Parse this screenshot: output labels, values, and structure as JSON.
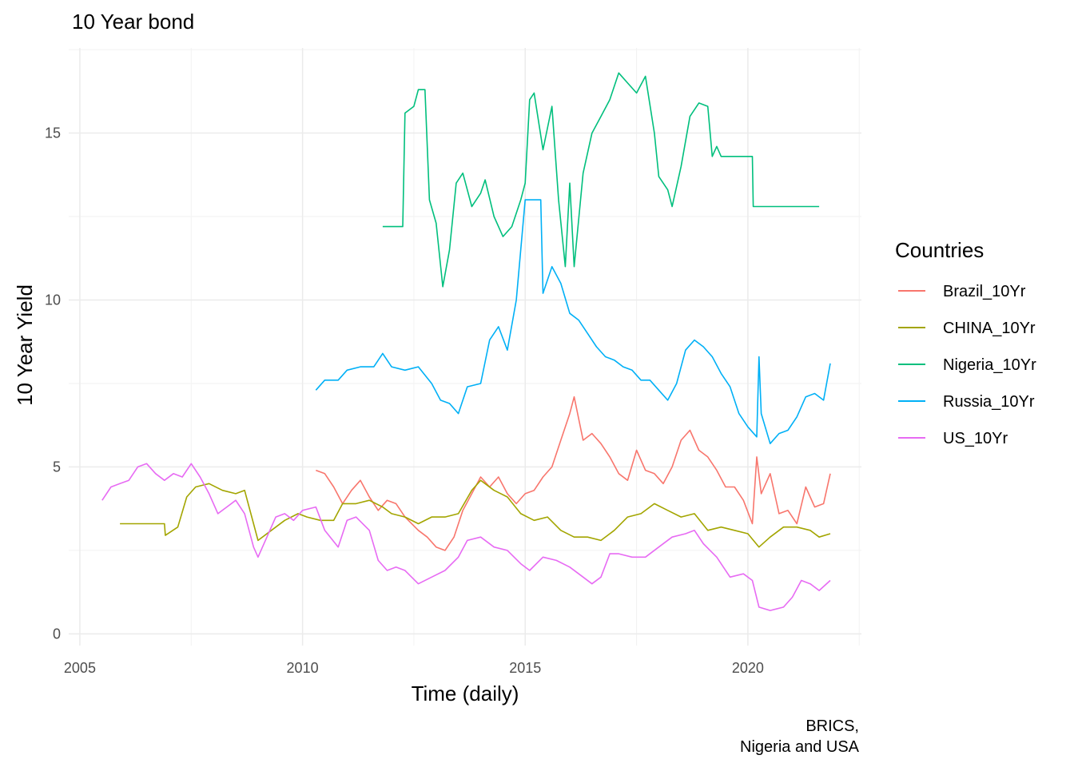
{
  "chart_data": {
    "type": "line",
    "title": "10 Year bond",
    "xlabel": "Time (daily)",
    "ylabel": "10 Year Yield",
    "caption": [
      "BRICS,",
      "Nigeria and USA"
    ],
    "x_ticks": [
      "2005",
      "2010",
      "2015",
      "2020"
    ],
    "y_ticks": [
      "0",
      "5",
      "10",
      "15"
    ],
    "xlim": [
      2004.75,
      2022.55
    ],
    "ylim": [
      -0.35,
      17.55
    ],
    "grid": true,
    "legend": {
      "title": "Countries",
      "position": "right"
    },
    "series": [
      {
        "name": "Brazil_10Yr",
        "color": "#F8766D",
        "points": [
          [
            2010.3,
            4.9
          ],
          [
            2010.5,
            4.8
          ],
          [
            2010.7,
            4.4
          ],
          [
            2010.9,
            3.9
          ],
          [
            2011.1,
            4.3
          ],
          [
            2011.3,
            4.6
          ],
          [
            2011.5,
            4.1
          ],
          [
            2011.7,
            3.7
          ],
          [
            2011.9,
            4.0
          ],
          [
            2012.1,
            3.9
          ],
          [
            2012.3,
            3.5
          ],
          [
            2012.6,
            3.1
          ],
          [
            2012.8,
            2.9
          ],
          [
            2013.0,
            2.6
          ],
          [
            2013.2,
            2.5
          ],
          [
            2013.4,
            2.9
          ],
          [
            2013.6,
            3.7
          ],
          [
            2013.8,
            4.2
          ],
          [
            2014.0,
            4.7
          ],
          [
            2014.2,
            4.4
          ],
          [
            2014.4,
            4.7
          ],
          [
            2014.6,
            4.2
          ],
          [
            2014.8,
            3.9
          ],
          [
            2015.0,
            4.2
          ],
          [
            2015.2,
            4.3
          ],
          [
            2015.4,
            4.7
          ],
          [
            2015.6,
            5.0
          ],
          [
            2015.8,
            5.8
          ],
          [
            2016.0,
            6.6
          ],
          [
            2016.1,
            7.1
          ],
          [
            2016.3,
            5.8
          ],
          [
            2016.5,
            6.0
          ],
          [
            2016.7,
            5.7
          ],
          [
            2016.9,
            5.3
          ],
          [
            2017.1,
            4.8
          ],
          [
            2017.3,
            4.6
          ],
          [
            2017.5,
            5.5
          ],
          [
            2017.7,
            4.9
          ],
          [
            2017.9,
            4.8
          ],
          [
            2018.1,
            4.5
          ],
          [
            2018.3,
            5.0
          ],
          [
            2018.5,
            5.8
          ],
          [
            2018.7,
            6.1
          ],
          [
            2018.9,
            5.5
          ],
          [
            2019.1,
            5.3
          ],
          [
            2019.3,
            4.9
          ],
          [
            2019.5,
            4.4
          ],
          [
            2019.7,
            4.4
          ],
          [
            2019.9,
            4.0
          ],
          [
            2020.1,
            3.3
          ],
          [
            2020.2,
            5.3
          ],
          [
            2020.3,
            4.2
          ],
          [
            2020.5,
            4.8
          ],
          [
            2020.7,
            3.6
          ],
          [
            2020.9,
            3.7
          ],
          [
            2021.1,
            3.3
          ],
          [
            2021.3,
            4.4
          ],
          [
            2021.5,
            3.8
          ],
          [
            2021.7,
            3.9
          ],
          [
            2021.85,
            4.8
          ]
        ]
      },
      {
        "name": "CHINA_10Yr",
        "color": "#A3A500",
        "points": [
          [
            2005.9,
            3.3
          ],
          [
            2006.9,
            3.3
          ],
          [
            2006.92,
            2.95
          ],
          [
            2007.2,
            3.2
          ],
          [
            2007.4,
            4.1
          ],
          [
            2007.6,
            4.4
          ],
          [
            2007.9,
            4.5
          ],
          [
            2008.2,
            4.3
          ],
          [
            2008.5,
            4.2
          ],
          [
            2008.7,
            4.3
          ],
          [
            2008.9,
            3.3
          ],
          [
            2009.0,
            2.8
          ],
          [
            2009.3,
            3.1
          ],
          [
            2009.6,
            3.4
          ],
          [
            2009.9,
            3.6
          ],
          [
            2010.1,
            3.5
          ],
          [
            2010.4,
            3.4
          ],
          [
            2010.7,
            3.4
          ],
          [
            2010.9,
            3.9
          ],
          [
            2011.2,
            3.9
          ],
          [
            2011.5,
            4.0
          ],
          [
            2011.8,
            3.8
          ],
          [
            2012.0,
            3.6
          ],
          [
            2012.3,
            3.5
          ],
          [
            2012.6,
            3.3
          ],
          [
            2012.9,
            3.5
          ],
          [
            2013.2,
            3.5
          ],
          [
            2013.5,
            3.6
          ],
          [
            2013.8,
            4.3
          ],
          [
            2014.0,
            4.6
          ],
          [
            2014.3,
            4.3
          ],
          [
            2014.6,
            4.1
          ],
          [
            2014.9,
            3.6
          ],
          [
            2015.2,
            3.4
          ],
          [
            2015.5,
            3.5
          ],
          [
            2015.8,
            3.1
          ],
          [
            2016.1,
            2.9
          ],
          [
            2016.4,
            2.9
          ],
          [
            2016.7,
            2.8
          ],
          [
            2017.0,
            3.1
          ],
          [
            2017.3,
            3.5
          ],
          [
            2017.6,
            3.6
          ],
          [
            2017.9,
            3.9
          ],
          [
            2018.2,
            3.7
          ],
          [
            2018.5,
            3.5
          ],
          [
            2018.8,
            3.6
          ],
          [
            2019.1,
            3.1
          ],
          [
            2019.4,
            3.2
          ],
          [
            2019.7,
            3.1
          ],
          [
            2020.0,
            3.0
          ],
          [
            2020.25,
            2.6
          ],
          [
            2020.5,
            2.9
          ],
          [
            2020.8,
            3.2
          ],
          [
            2021.1,
            3.2
          ],
          [
            2021.4,
            3.1
          ],
          [
            2021.6,
            2.9
          ],
          [
            2021.85,
            3.0
          ]
        ]
      },
      {
        "name": "Nigeria_10Yr",
        "color": "#00BF7D",
        "points": [
          [
            2011.8,
            12.2
          ],
          [
            2012.25,
            12.2
          ],
          [
            2012.3,
            15.6
          ],
          [
            2012.5,
            15.8
          ],
          [
            2012.6,
            16.3
          ],
          [
            2012.75,
            16.3
          ],
          [
            2012.85,
            13.0
          ],
          [
            2013.0,
            12.3
          ],
          [
            2013.15,
            10.4
          ],
          [
            2013.3,
            11.5
          ],
          [
            2013.45,
            13.5
          ],
          [
            2013.6,
            13.8
          ],
          [
            2013.8,
            12.8
          ],
          [
            2014.0,
            13.2
          ],
          [
            2014.1,
            13.6
          ],
          [
            2014.3,
            12.5
          ],
          [
            2014.5,
            11.9
          ],
          [
            2014.7,
            12.2
          ],
          [
            2014.9,
            13.0
          ],
          [
            2015.0,
            13.5
          ],
          [
            2015.1,
            16.0
          ],
          [
            2015.2,
            16.2
          ],
          [
            2015.4,
            14.5
          ],
          [
            2015.6,
            15.8
          ],
          [
            2015.75,
            13.0
          ],
          [
            2015.9,
            11.0
          ],
          [
            2016.0,
            13.5
          ],
          [
            2016.1,
            11.0
          ],
          [
            2016.3,
            13.8
          ],
          [
            2016.5,
            15.0
          ],
          [
            2016.7,
            15.5
          ],
          [
            2016.9,
            16.0
          ],
          [
            2017.1,
            16.8
          ],
          [
            2017.3,
            16.5
          ],
          [
            2017.5,
            16.2
          ],
          [
            2017.7,
            16.7
          ],
          [
            2017.9,
            15.0
          ],
          [
            2018.0,
            13.7
          ],
          [
            2018.2,
            13.3
          ],
          [
            2018.3,
            12.8
          ],
          [
            2018.5,
            14.0
          ],
          [
            2018.7,
            15.5
          ],
          [
            2018.9,
            15.9
          ],
          [
            2019.1,
            15.8
          ],
          [
            2019.2,
            14.3
          ],
          [
            2019.3,
            14.6
          ],
          [
            2019.4,
            14.3
          ],
          [
            2020.1,
            14.3
          ],
          [
            2020.12,
            12.8
          ],
          [
            2021.6,
            12.8
          ]
        ]
      },
      {
        "name": "Russia_10Yr",
        "color": "#00B0F6",
        "points": [
          [
            2010.3,
            7.3
          ],
          [
            2010.5,
            7.6
          ],
          [
            2010.8,
            7.6
          ],
          [
            2011.0,
            7.9
          ],
          [
            2011.3,
            8.0
          ],
          [
            2011.6,
            8.0
          ],
          [
            2011.8,
            8.4
          ],
          [
            2012.0,
            8.0
          ],
          [
            2012.3,
            7.9
          ],
          [
            2012.6,
            8.0
          ],
          [
            2012.9,
            7.5
          ],
          [
            2013.1,
            7.0
          ],
          [
            2013.3,
            6.9
          ],
          [
            2013.5,
            6.6
          ],
          [
            2013.7,
            7.4
          ],
          [
            2014.0,
            7.5
          ],
          [
            2014.2,
            8.8
          ],
          [
            2014.4,
            9.2
          ],
          [
            2014.6,
            8.5
          ],
          [
            2014.8,
            10.0
          ],
          [
            2015.0,
            13.0
          ],
          [
            2015.35,
            13.0
          ],
          [
            2015.4,
            10.2
          ],
          [
            2015.6,
            11.0
          ],
          [
            2015.8,
            10.5
          ],
          [
            2016.0,
            9.6
          ],
          [
            2016.2,
            9.4
          ],
          [
            2016.4,
            9.0
          ],
          [
            2016.6,
            8.6
          ],
          [
            2016.8,
            8.3
          ],
          [
            2017.0,
            8.2
          ],
          [
            2017.2,
            8.0
          ],
          [
            2017.4,
            7.9
          ],
          [
            2017.6,
            7.6
          ],
          [
            2017.8,
            7.6
          ],
          [
            2018.0,
            7.3
          ],
          [
            2018.2,
            7.0
          ],
          [
            2018.4,
            7.5
          ],
          [
            2018.6,
            8.5
          ],
          [
            2018.8,
            8.8
          ],
          [
            2019.0,
            8.6
          ],
          [
            2019.2,
            8.3
          ],
          [
            2019.4,
            7.8
          ],
          [
            2019.6,
            7.4
          ],
          [
            2019.8,
            6.6
          ],
          [
            2020.0,
            6.2
          ],
          [
            2020.2,
            5.9
          ],
          [
            2020.25,
            8.3
          ],
          [
            2020.3,
            6.6
          ],
          [
            2020.5,
            5.7
          ],
          [
            2020.7,
            6.0
          ],
          [
            2020.9,
            6.1
          ],
          [
            2021.1,
            6.5
          ],
          [
            2021.3,
            7.1
          ],
          [
            2021.5,
            7.2
          ],
          [
            2021.7,
            7.0
          ],
          [
            2021.85,
            8.1
          ]
        ]
      },
      {
        "name": "US_10Yr",
        "color": "#E76BF3",
        "points": [
          [
            2005.5,
            4.0
          ],
          [
            2005.7,
            4.4
          ],
          [
            2005.9,
            4.5
          ],
          [
            2006.1,
            4.6
          ],
          [
            2006.3,
            5.0
          ],
          [
            2006.5,
            5.1
          ],
          [
            2006.7,
            4.8
          ],
          [
            2006.9,
            4.6
          ],
          [
            2007.1,
            4.8
          ],
          [
            2007.3,
            4.7
          ],
          [
            2007.5,
            5.1
          ],
          [
            2007.7,
            4.7
          ],
          [
            2007.9,
            4.2
          ],
          [
            2008.1,
            3.6
          ],
          [
            2008.3,
            3.8
          ],
          [
            2008.5,
            4.0
          ],
          [
            2008.7,
            3.6
          ],
          [
            2008.9,
            2.6
          ],
          [
            2009.0,
            2.3
          ],
          [
            2009.2,
            2.9
          ],
          [
            2009.4,
            3.5
          ],
          [
            2009.6,
            3.6
          ],
          [
            2009.8,
            3.4
          ],
          [
            2010.0,
            3.7
          ],
          [
            2010.3,
            3.8
          ],
          [
            2010.5,
            3.1
          ],
          [
            2010.8,
            2.6
          ],
          [
            2011.0,
            3.4
          ],
          [
            2011.2,
            3.5
          ],
          [
            2011.5,
            3.1
          ],
          [
            2011.7,
            2.2
          ],
          [
            2011.9,
            1.9
          ],
          [
            2012.1,
            2.0
          ],
          [
            2012.3,
            1.9
          ],
          [
            2012.6,
            1.5
          ],
          [
            2012.9,
            1.7
          ],
          [
            2013.2,
            1.9
          ],
          [
            2013.5,
            2.3
          ],
          [
            2013.7,
            2.8
          ],
          [
            2014.0,
            2.9
          ],
          [
            2014.3,
            2.6
          ],
          [
            2014.6,
            2.5
          ],
          [
            2014.9,
            2.1
          ],
          [
            2015.1,
            1.9
          ],
          [
            2015.4,
            2.3
          ],
          [
            2015.7,
            2.2
          ],
          [
            2016.0,
            2.0
          ],
          [
            2016.3,
            1.7
          ],
          [
            2016.5,
            1.5
          ],
          [
            2016.7,
            1.7
          ],
          [
            2016.9,
            2.4
          ],
          [
            2017.1,
            2.4
          ],
          [
            2017.4,
            2.3
          ],
          [
            2017.7,
            2.3
          ],
          [
            2018.0,
            2.6
          ],
          [
            2018.3,
            2.9
          ],
          [
            2018.6,
            3.0
          ],
          [
            2018.8,
            3.1
          ],
          [
            2019.0,
            2.7
          ],
          [
            2019.3,
            2.3
          ],
          [
            2019.6,
            1.7
          ],
          [
            2019.9,
            1.8
          ],
          [
            2020.1,
            1.6
          ],
          [
            2020.25,
            0.8
          ],
          [
            2020.5,
            0.7
          ],
          [
            2020.8,
            0.8
          ],
          [
            2021.0,
            1.1
          ],
          [
            2021.2,
            1.6
          ],
          [
            2021.4,
            1.5
          ],
          [
            2021.6,
            1.3
          ],
          [
            2021.85,
            1.6
          ]
        ]
      }
    ]
  }
}
